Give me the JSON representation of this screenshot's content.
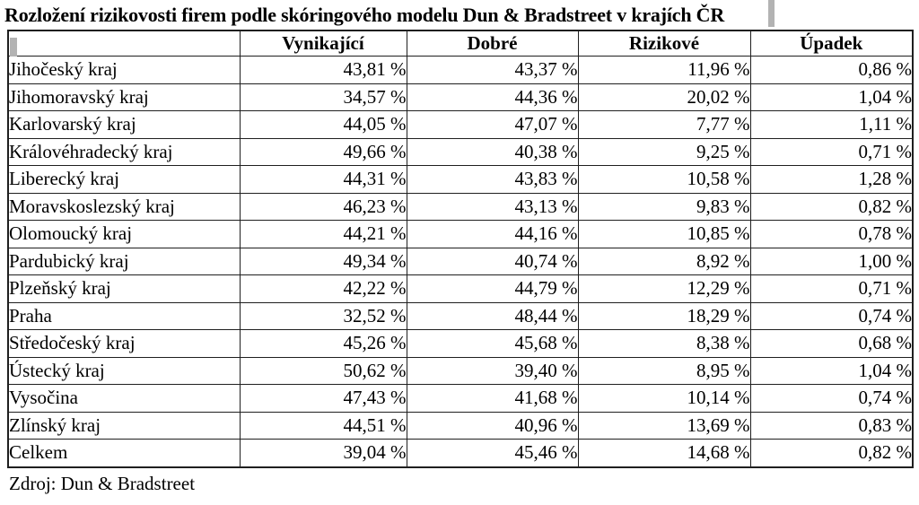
{
  "title": "Rozložení rizikovosti firem podle skóringového modelu Dun & Bradstreet v krajích ČR",
  "source": "Zdroj: Dun & Bradstreet",
  "colors": {
    "background": "#ffffff",
    "text": "#000000",
    "border": "#1f1f1f",
    "cursor_artifact": "#b3b3b3"
  },
  "table": {
    "columns": [
      "",
      "Vynikající",
      "Dobré",
      "Rizikové",
      "Úpadek"
    ],
    "rows": [
      {
        "region": "Jihočeský kraj",
        "values": [
          "43,81 %",
          "43,37 %",
          "11,96 %",
          "0,86 %"
        ]
      },
      {
        "region": "Jihomoravský kraj",
        "values": [
          "34,57 %",
          "44,36 %",
          "20,02 %",
          "1,04 %"
        ]
      },
      {
        "region": "Karlovarský kraj",
        "values": [
          "44,05 %",
          "47,07 %",
          "7,77 %",
          "1,11 %"
        ]
      },
      {
        "region": "Královéhradecký kraj",
        "values": [
          "49,66 %",
          "40,38 %",
          "9,25 %",
          "0,71 %"
        ]
      },
      {
        "region": "Liberecký kraj",
        "values": [
          "44,31 %",
          "43,83 %",
          "10,58 %",
          "1,28 %"
        ]
      },
      {
        "region": "Moravskoslezský kraj",
        "values": [
          "46,23 %",
          "43,13 %",
          "9,83 %",
          "0,82 %"
        ]
      },
      {
        "region": "Olomoucký kraj",
        "values": [
          "44,21 %",
          "44,16 %",
          "10,85 %",
          "0,78 %"
        ]
      },
      {
        "region": "Pardubický kraj",
        "values": [
          "49,34 %",
          "40,74 %",
          "8,92 %",
          "1,00 %"
        ]
      },
      {
        "region": "Plzeňský kraj",
        "values": [
          "42,22 %",
          "44,79 %",
          "12,29 %",
          "0,71 %"
        ]
      },
      {
        "region": "Praha",
        "values": [
          "32,52 %",
          "48,44 %",
          "18,29 %",
          "0,74 %"
        ]
      },
      {
        "region": "Středočeský kraj",
        "values": [
          "45,26 %",
          "45,68 %",
          "8,38 %",
          "0,68 %"
        ]
      },
      {
        "region": "Ústecký kraj",
        "values": [
          "50,62 %",
          "39,40 %",
          "8,95 %",
          "1,04 %"
        ]
      },
      {
        "region": "Vysočina",
        "values": [
          "47,43 %",
          "41,68 %",
          "10,14 %",
          "0,74 %"
        ]
      },
      {
        "region": "Zlínský kraj",
        "values": [
          "44,51 %",
          "40,96 %",
          "13,69 %",
          "0,83 %"
        ]
      },
      {
        "region": "Celkem",
        "values": [
          "39,04 %",
          "45,46 %",
          "14,68 %",
          "0,82 %"
        ]
      }
    ]
  }
}
